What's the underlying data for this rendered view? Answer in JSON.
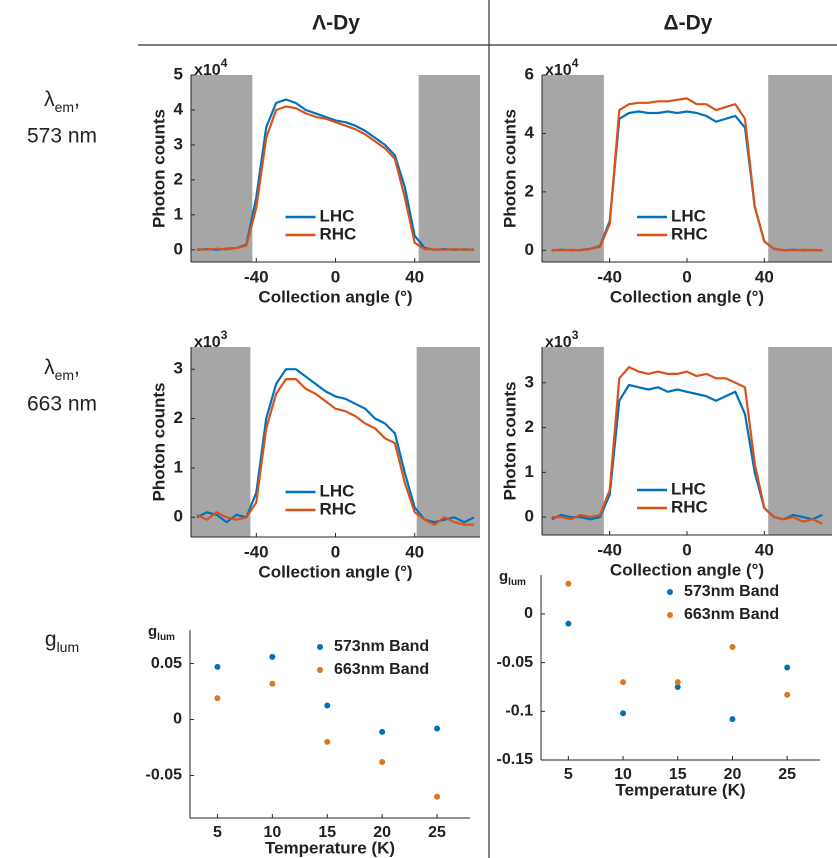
{
  "headers": [
    "Λ-Dy",
    "Δ-Dy"
  ],
  "row_labels": [
    {
      "main": "λ",
      "sub": "em",
      "suffix": ",",
      "line2": "573 nm"
    },
    {
      "main": "λ",
      "sub": "em",
      "suffix": ",",
      "line2": "663 nm"
    },
    {
      "main": "g",
      "sub": "lum"
    }
  ],
  "chart_data": [
    {
      "type": "line",
      "xlabel": "Collection angle (°)",
      "ylabel": "Photon counts",
      "y_multiplier": {
        "base": "x10",
        "exp": "4"
      },
      "x": [
        -70,
        -65,
        -60,
        -55,
        -50,
        -45,
        -40,
        -35,
        -30,
        -25,
        -20,
        -15,
        -10,
        -5,
        0,
        5,
        10,
        15,
        20,
        25,
        30,
        35,
        40,
        45,
        50,
        55,
        60,
        65,
        70
      ],
      "series": [
        {
          "name": "LHC",
          "color": "#0072bd",
          "values": [
            0,
            0.02,
            0,
            0.03,
            0.05,
            0.15,
            1.5,
            3.5,
            4.2,
            4.3,
            4.2,
            4.0,
            3.9,
            3.8,
            3.7,
            3.65,
            3.55,
            3.4,
            3.2,
            3.0,
            2.7,
            1.8,
            0.4,
            0.05,
            0,
            0.02,
            0,
            0.01,
            0
          ]
        },
        {
          "name": "RHC",
          "color": "#d95319",
          "values": [
            0.02,
            0,
            0.03,
            0.01,
            0.05,
            0.12,
            1.2,
            3.2,
            4.0,
            4.1,
            4.05,
            3.9,
            3.8,
            3.75,
            3.65,
            3.55,
            3.45,
            3.3,
            3.1,
            2.9,
            2.6,
            1.5,
            0.2,
            0.02,
            0.01,
            0,
            0.02,
            0,
            0.01
          ]
        }
      ],
      "xlim": [
        -73,
        73
      ],
      "xticks": [
        -40,
        0,
        40
      ],
      "ylim": [
        -0.35,
        5
      ],
      "yticks": [
        0,
        1,
        2,
        3,
        4,
        5
      ],
      "shaded": [
        [
          -73,
          -42
        ],
        [
          42,
          73
        ]
      ],
      "shade_color": "#a6a6a6",
      "legend": "south"
    },
    {
      "type": "line",
      "xlabel": "Collection angle (°)",
      "ylabel": "Photon counts",
      "y_multiplier": {
        "base": "x10",
        "exp": "4"
      },
      "x": [
        -70,
        -65,
        -60,
        -55,
        -50,
        -45,
        -40,
        -35,
        -30,
        -25,
        -20,
        -15,
        -10,
        -5,
        0,
        5,
        10,
        15,
        20,
        25,
        30,
        35,
        40,
        45,
        50,
        55,
        60,
        65,
        70
      ],
      "series": [
        {
          "name": "LHC",
          "color": "#0072bd",
          "values": [
            0,
            0.02,
            0,
            0.01,
            0.05,
            0.15,
            1.0,
            4.5,
            4.7,
            4.75,
            4.7,
            4.7,
            4.75,
            4.7,
            4.75,
            4.7,
            4.6,
            4.4,
            4.5,
            4.6,
            4.2,
            1.5,
            0.3,
            0.05,
            0,
            0.02,
            0,
            0.01,
            0
          ]
        },
        {
          "name": "RHC",
          "color": "#d95319",
          "values": [
            0.01,
            0,
            0.02,
            0,
            0.04,
            0.12,
            0.9,
            4.8,
            5.0,
            5.05,
            5.05,
            5.1,
            5.1,
            5.15,
            5.2,
            5.0,
            5.0,
            4.8,
            4.9,
            5.0,
            4.5,
            1.5,
            0.3,
            0.05,
            0.01,
            0,
            0.02,
            0.01,
            0
          ]
        }
      ],
      "xlim": [
        -75,
        75
      ],
      "xticks": [
        -40,
        0,
        40
      ],
      "ylim": [
        -0.4,
        6
      ],
      "yticks": [
        0,
        2,
        4,
        6
      ],
      "shaded": [
        [
          -75,
          -43
        ],
        [
          42,
          75
        ]
      ],
      "shade_color": "#a6a6a6",
      "legend": "south"
    },
    {
      "type": "line",
      "xlabel": "Collection angle (°)",
      "ylabel": "Photon counts",
      "y_multiplier": {
        "base": "x10",
        "exp": "3"
      },
      "x": [
        -70,
        -65,
        -60,
        -55,
        -50,
        -45,
        -40,
        -35,
        -30,
        -25,
        -20,
        -15,
        -10,
        -5,
        0,
        5,
        10,
        15,
        20,
        25,
        30,
        35,
        40,
        45,
        50,
        55,
        60,
        65,
        70
      ],
      "series": [
        {
          "name": "LHC",
          "color": "#0072bd",
          "values": [
            0.0,
            0.1,
            0.05,
            -0.1,
            0.05,
            0.0,
            0.5,
            2.0,
            2.7,
            3.0,
            3.0,
            2.85,
            2.7,
            2.55,
            2.45,
            2.4,
            2.3,
            2.2,
            2.0,
            1.9,
            1.7,
            0.9,
            0.2,
            -0.05,
            -0.1,
            -0.05,
            0.0,
            -0.1,
            0.0
          ]
        },
        {
          "name": "RHC",
          "color": "#d95319",
          "values": [
            0.05,
            -0.05,
            0.1,
            0.0,
            -0.05,
            0.0,
            0.3,
            1.8,
            2.5,
            2.8,
            2.8,
            2.6,
            2.5,
            2.35,
            2.2,
            2.15,
            2.05,
            1.9,
            1.8,
            1.6,
            1.5,
            0.7,
            0.1,
            -0.05,
            -0.15,
            0.0,
            -0.1,
            -0.15,
            -0.15
          ]
        }
      ],
      "xlim": [
        -73,
        73
      ],
      "xticks": [
        -40,
        0,
        40
      ],
      "ylim": [
        -0.4,
        3.45
      ],
      "yticks": [
        0,
        1,
        2,
        3
      ],
      "shaded": [
        [
          -73,
          -43
        ],
        [
          41,
          73
        ]
      ],
      "shade_color": "#a6a6a6",
      "legend": "south"
    },
    {
      "type": "line",
      "xlabel": "Collection angle (°)",
      "ylabel": "Photon counts",
      "y_multiplier": {
        "base": "x10",
        "exp": "3"
      },
      "x": [
        -70,
        -65,
        -60,
        -55,
        -50,
        -45,
        -40,
        -35,
        -30,
        -25,
        -20,
        -15,
        -10,
        -5,
        0,
        5,
        10,
        15,
        20,
        25,
        30,
        35,
        40,
        45,
        50,
        55,
        60,
        65,
        70
      ],
      "series": [
        {
          "name": "LHC",
          "color": "#0072bd",
          "values": [
            -0.05,
            0.05,
            0.0,
            0.0,
            -0.05,
            0.0,
            0.5,
            2.6,
            2.95,
            2.9,
            2.85,
            2.9,
            2.8,
            2.85,
            2.8,
            2.75,
            2.7,
            2.6,
            2.7,
            2.8,
            2.3,
            1.0,
            0.2,
            0.0,
            -0.05,
            0.05,
            0.0,
            -0.05,
            0.05
          ]
        },
        {
          "name": "RHC",
          "color": "#d95319",
          "values": [
            0.0,
            0.0,
            -0.05,
            0.05,
            0.0,
            0.05,
            0.6,
            3.1,
            3.35,
            3.25,
            3.2,
            3.25,
            3.2,
            3.2,
            3.25,
            3.15,
            3.2,
            3.1,
            3.1,
            3.0,
            2.9,
            1.2,
            0.2,
            0.0,
            -0.05,
            0.0,
            -0.1,
            -0.05,
            -0.15
          ]
        }
      ],
      "xlim": [
        -75,
        75
      ],
      "xticks": [
        -40,
        0,
        40
      ],
      "ylim": [
        -0.4,
        3.8
      ],
      "yticks": [
        0,
        1,
        2,
        3
      ],
      "shaded": [
        [
          -75,
          -43
        ],
        [
          42,
          75
        ]
      ],
      "shade_color": "#a6a6a6",
      "legend": "south"
    },
    {
      "type": "scatter",
      "xlabel": "Temperature (K)",
      "ylabel": {
        "main": "g",
        "sub": "lum"
      },
      "x": [
        5,
        10,
        15,
        20,
        25
      ],
      "series": [
        {
          "name": "573nm Band",
          "color": "#0072bd",
          "values": [
            0.047,
            0.056,
            0.0125,
            -0.011,
            -0.008
          ]
        },
        {
          "name": "663nm Band",
          "color": "#d97a1e",
          "values": [
            0.019,
            0.032,
            -0.02,
            -0.038,
            -0.069
          ]
        }
      ],
      "xlim": [
        2.5,
        28
      ],
      "xticks": [
        5,
        10,
        15,
        20,
        25
      ],
      "ylim": [
        -0.088,
        0.08
      ],
      "yticks": [
        -0.05,
        0,
        0.05
      ],
      "legend": "northeast"
    },
    {
      "type": "scatter",
      "xlabel": "Temperature (K)",
      "ylabel": {
        "main": "g",
        "sub": "lum"
      },
      "x": [
        5,
        10,
        15,
        20,
        25
      ],
      "series": [
        {
          "name": "573nm Band",
          "color": "#0072bd",
          "values": [
            -0.01,
            -0.102,
            -0.075,
            -0.108,
            -0.055
          ]
        },
        {
          "name": "663nm Band",
          "color": "#d97a1e",
          "values": [
            0.031,
            -0.07,
            -0.07,
            -0.034,
            -0.083
          ]
        }
      ],
      "xlim": [
        2.5,
        28
      ],
      "xticks": [
        5,
        10,
        15,
        20,
        25
      ],
      "ylim": [
        -0.15,
        0.04
      ],
      "yticks": [
        -0.15,
        -0.1,
        -0.05,
        0
      ],
      "legend": "northeast"
    }
  ]
}
